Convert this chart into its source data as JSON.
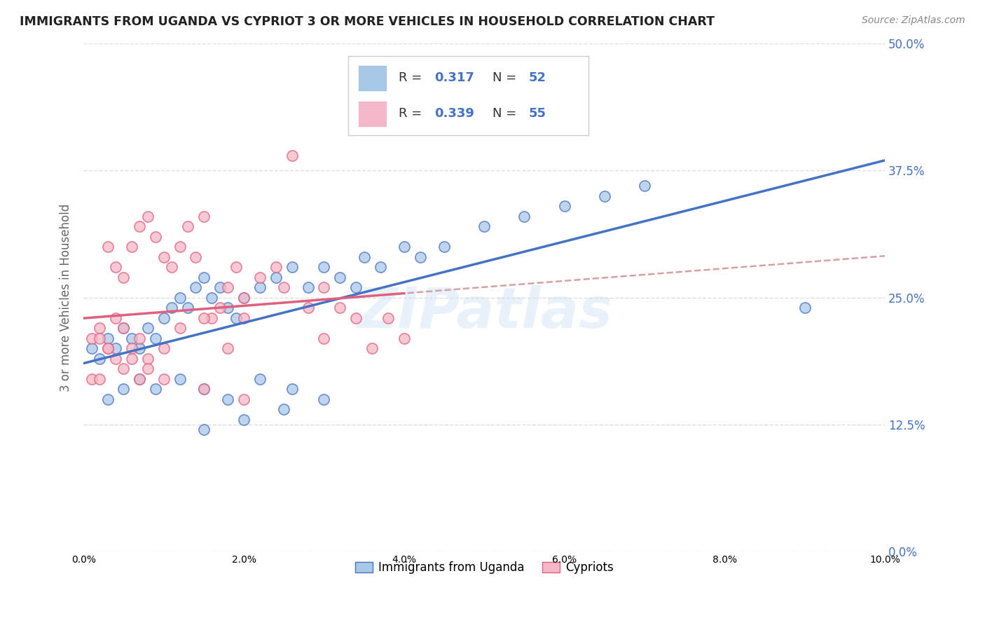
{
  "title": "IMMIGRANTS FROM UGANDA VS CYPRIOT 3 OR MORE VEHICLES IN HOUSEHOLD CORRELATION CHART",
  "source": "Source: ZipAtlas.com",
  "ylabel": "3 or more Vehicles in Household",
  "watermark": "ZIPatlas",
  "blue_color": "#a8c8e8",
  "pink_color": "#f4b8c8",
  "line_blue": "#4472c4",
  "line_pink": "#e06080",
  "dashed_color": "#d09898",
  "grid_color": "#d8d8d8",
  "axis_label_color": "#4472c4",
  "background_color": "#ffffff",
  "xlim": [
    0.0,
    0.1
  ],
  "ylim": [
    0.0,
    0.5
  ],
  "legend_color_r": "#333333",
  "legend_color_n": "#4472c4",
  "uganda_x": [
    0.001,
    0.002,
    0.003,
    0.004,
    0.005,
    0.006,
    0.007,
    0.008,
    0.009,
    0.01,
    0.011,
    0.012,
    0.013,
    0.014,
    0.015,
    0.016,
    0.017,
    0.018,
    0.019,
    0.02,
    0.022,
    0.024,
    0.026,
    0.028,
    0.03,
    0.032,
    0.034,
    0.035,
    0.037,
    0.04,
    0.042,
    0.045,
    0.05,
    0.055,
    0.06,
    0.065,
    0.07,
    0.09,
    0.003,
    0.005,
    0.007,
    0.009,
    0.012,
    0.015,
    0.018,
    0.022,
    0.026,
    0.03,
    0.025,
    0.02,
    0.015
  ],
  "uganda_y": [
    0.2,
    0.19,
    0.21,
    0.2,
    0.22,
    0.21,
    0.2,
    0.22,
    0.21,
    0.23,
    0.24,
    0.25,
    0.24,
    0.26,
    0.27,
    0.25,
    0.26,
    0.24,
    0.23,
    0.25,
    0.26,
    0.27,
    0.28,
    0.26,
    0.28,
    0.27,
    0.26,
    0.29,
    0.28,
    0.3,
    0.29,
    0.3,
    0.32,
    0.33,
    0.34,
    0.35,
    0.36,
    0.24,
    0.15,
    0.16,
    0.17,
    0.16,
    0.17,
    0.16,
    0.15,
    0.17,
    0.16,
    0.15,
    0.14,
    0.13,
    0.12
  ],
  "cypriot_x": [
    0.001,
    0.002,
    0.003,
    0.004,
    0.005,
    0.006,
    0.007,
    0.008,
    0.009,
    0.01,
    0.011,
    0.012,
    0.013,
    0.014,
    0.015,
    0.016,
    0.017,
    0.018,
    0.019,
    0.02,
    0.022,
    0.024,
    0.026,
    0.028,
    0.03,
    0.032,
    0.034,
    0.036,
    0.038,
    0.04,
    0.002,
    0.003,
    0.004,
    0.005,
    0.006,
    0.007,
    0.008,
    0.01,
    0.012,
    0.015,
    0.018,
    0.02,
    0.025,
    0.03,
    0.001,
    0.002,
    0.003,
    0.004,
    0.005,
    0.006,
    0.007,
    0.008,
    0.01,
    0.015,
    0.02
  ],
  "cypriot_y": [
    0.21,
    0.22,
    0.3,
    0.28,
    0.27,
    0.3,
    0.32,
    0.33,
    0.31,
    0.29,
    0.28,
    0.3,
    0.32,
    0.29,
    0.33,
    0.23,
    0.24,
    0.26,
    0.28,
    0.25,
    0.27,
    0.28,
    0.39,
    0.24,
    0.26,
    0.24,
    0.23,
    0.2,
    0.23,
    0.21,
    0.21,
    0.2,
    0.23,
    0.22,
    0.2,
    0.21,
    0.19,
    0.2,
    0.22,
    0.23,
    0.2,
    0.23,
    0.26,
    0.21,
    0.17,
    0.17,
    0.2,
    0.19,
    0.18,
    0.19,
    0.17,
    0.18,
    0.17,
    0.16,
    0.15
  ]
}
